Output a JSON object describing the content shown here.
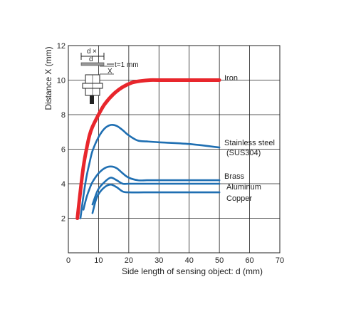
{
  "chart_data": {
    "type": "line",
    "xlabel": "Side length of sensing object: d (mm)",
    "ylabel": "Distance X (mm)",
    "xlim": [
      0,
      70
    ],
    "ylim": [
      0,
      12
    ],
    "xticks": [
      0,
      10,
      20,
      30,
      40,
      50,
      60,
      70
    ],
    "yticks": [
      2,
      4,
      6,
      8,
      10,
      12
    ],
    "grid": true,
    "series": [
      {
        "name": "Iron",
        "color": "#e8262c",
        "x": [
          3,
          4,
          5,
          6,
          7,
          8,
          10,
          12,
          15,
          18,
          21,
          24,
          27,
          30,
          40,
          50
        ],
        "y": [
          2.0,
          3.6,
          5.0,
          6.0,
          6.8,
          7.3,
          8.0,
          8.6,
          9.2,
          9.6,
          9.85,
          9.95,
          10.0,
          10.0,
          10.0,
          10.0
        ]
      },
      {
        "name": "Stainless steel",
        "name2": "(SUS304)",
        "color": "#1f6fb2",
        "x": [
          4,
          5,
          6,
          7,
          8,
          10,
          12,
          14,
          16,
          18,
          20,
          23,
          26,
          30,
          40,
          50
        ],
        "y": [
          2.0,
          3.3,
          4.4,
          5.2,
          5.9,
          6.7,
          7.2,
          7.4,
          7.35,
          7.1,
          6.8,
          6.5,
          6.45,
          6.4,
          6.3,
          6.1
        ]
      },
      {
        "name": "Brass",
        "color": "#1f6fb2",
        "x": [
          5,
          6,
          7,
          8,
          10,
          12,
          14,
          16,
          18,
          20,
          23,
          26,
          30,
          40,
          50
        ],
        "y": [
          2.5,
          3.2,
          3.7,
          4.1,
          4.6,
          4.9,
          5.0,
          4.9,
          4.6,
          4.35,
          4.2,
          4.2,
          4.2,
          4.2,
          4.2
        ]
      },
      {
        "name": "Aluminum",
        "color": "#1f6fb2",
        "x": [
          8,
          9,
          10,
          12,
          14,
          16,
          18,
          20,
          25,
          30,
          40,
          50
        ],
        "y": [
          2.8,
          3.3,
          3.7,
          4.1,
          4.35,
          4.2,
          4.0,
          4.0,
          4.0,
          4.0,
          4.0,
          4.0
        ]
      },
      {
        "name": "Copper",
        "color": "#1f6fb2",
        "x": [
          8,
          9,
          10,
          12,
          14,
          16,
          18,
          20,
          25,
          30,
          40,
          50
        ],
        "y": [
          2.3,
          3.0,
          3.4,
          3.8,
          3.95,
          3.8,
          3.55,
          3.5,
          3.5,
          3.5,
          3.5,
          3.5
        ]
      }
    ]
  },
  "inset": {
    "dim_label_dx": "d",
    "dim_label_x": "×",
    "dim_label_d": "d",
    "thickness_label": "t=1 mm",
    "distance_label": "X"
  }
}
